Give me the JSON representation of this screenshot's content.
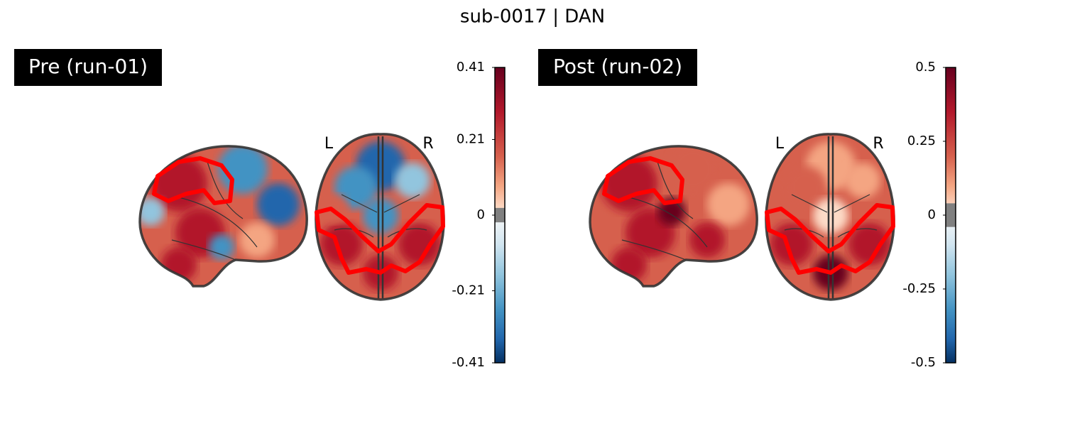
{
  "title": "sub-0017 | DAN",
  "panels": [
    {
      "label": "Pre (run-01)",
      "orientation_labels": [
        "L",
        "R"
      ],
      "colorbar": {
        "lim": [
          -0.41,
          0.41
        ],
        "ticks": [
          0.41,
          0.21,
          0,
          -0.21,
          -0.41
        ],
        "threshold": 0.02
      }
    },
    {
      "label": "Post (run-02)",
      "orientation_labels": [
        "L",
        "R"
      ],
      "colorbar": {
        "lim": [
          -0.5,
          0.5
        ],
        "ticks": [
          0.5,
          0.25,
          0,
          -0.25,
          -0.5
        ],
        "threshold": 0.04
      }
    }
  ]
}
